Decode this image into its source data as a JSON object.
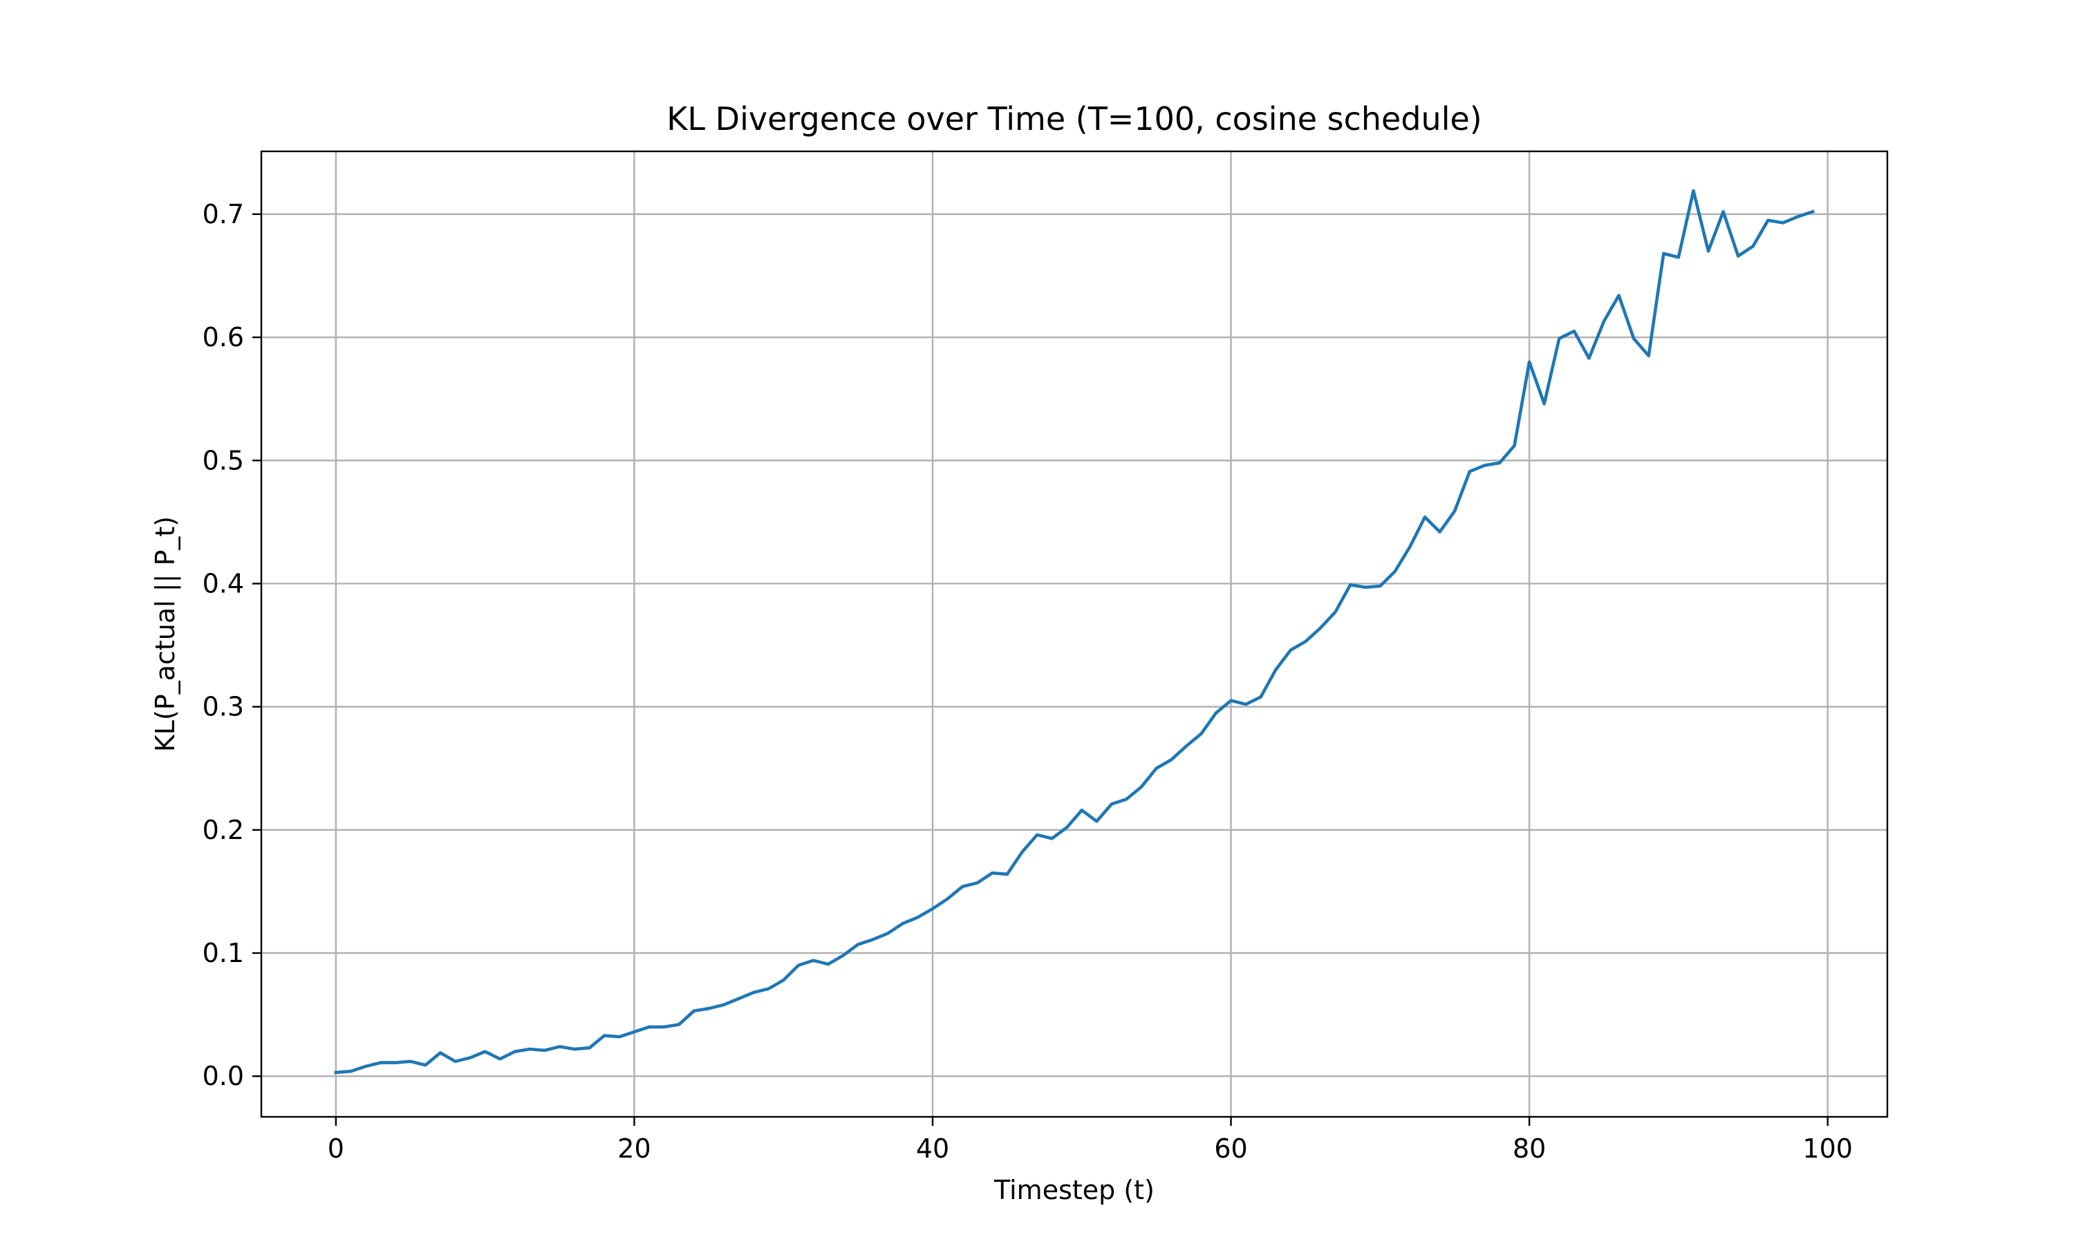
{
  "chart_data": {
    "type": "line",
    "title": "KL Divergence over Time (T=100, cosine schedule)",
    "xlabel": "Timestep (t)",
    "ylabel": "KL(P_actual || P_t)",
    "xlim": [
      -5,
      104
    ],
    "ylim": [
      -0.033,
      0.751
    ],
    "xticks": [
      0,
      20,
      40,
      60,
      80,
      100
    ],
    "xtick_labels": [
      "0",
      "20",
      "40",
      "60",
      "80",
      "100"
    ],
    "yticks": [
      0.0,
      0.1,
      0.2,
      0.3,
      0.4,
      0.5,
      0.6,
      0.7
    ],
    "ytick_labels": [
      "0.0",
      "0.1",
      "0.2",
      "0.3",
      "0.4",
      "0.5",
      "0.6",
      "0.7"
    ],
    "grid": true,
    "series": [
      {
        "color": "#1f77b4",
        "x": [
          0,
          1,
          2,
          3,
          4,
          5,
          6,
          7,
          8,
          9,
          10,
          11,
          12,
          13,
          14,
          15,
          16,
          17,
          18,
          19,
          20,
          21,
          22,
          23,
          24,
          25,
          26,
          27,
          28,
          29,
          30,
          31,
          32,
          33,
          34,
          35,
          36,
          37,
          38,
          39,
          40,
          41,
          42,
          43,
          44,
          45,
          46,
          47,
          48,
          49,
          50,
          51,
          52,
          53,
          54,
          55,
          56,
          57,
          58,
          59,
          60,
          61,
          62,
          63,
          64,
          65,
          66,
          67,
          68,
          69,
          70,
          71,
          72,
          73,
          74,
          75,
          76,
          77,
          78,
          79,
          80,
          81,
          82,
          83,
          84,
          85,
          86,
          87,
          88,
          89,
          90,
          91,
          92,
          93,
          94,
          95,
          96,
          97,
          98,
          99
        ],
        "y": [
          0.003,
          0.004,
          0.008,
          0.011,
          0.011,
          0.012,
          0.009,
          0.019,
          0.012,
          0.015,
          0.02,
          0.014,
          0.02,
          0.022,
          0.021,
          0.024,
          0.022,
          0.023,
          0.033,
          0.032,
          0.036,
          0.04,
          0.04,
          0.042,
          0.053,
          0.055,
          0.058,
          0.063,
          0.068,
          0.071,
          0.078,
          0.09,
          0.094,
          0.091,
          0.098,
          0.107,
          0.111,
          0.116,
          0.124,
          0.129,
          0.136,
          0.144,
          0.154,
          0.157,
          0.165,
          0.164,
          0.182,
          0.196,
          0.193,
          0.202,
          0.216,
          0.207,
          0.221,
          0.225,
          0.235,
          0.25,
          0.257,
          0.268,
          0.278,
          0.295,
          0.305,
          0.302,
          0.308,
          0.33,
          0.346,
          0.353,
          0.364,
          0.377,
          0.399,
          0.397,
          0.398,
          0.41,
          0.43,
          0.454,
          0.442,
          0.459,
          0.491,
          0.496,
          0.498,
          0.512,
          0.58,
          0.546,
          0.599,
          0.605,
          0.583,
          0.613,
          0.634,
          0.599,
          0.585,
          0.668,
          0.665,
          0.719,
          0.67,
          0.702,
          0.666,
          0.674,
          0.695,
          0.693,
          0.698,
          0.702
        ]
      }
    ]
  }
}
